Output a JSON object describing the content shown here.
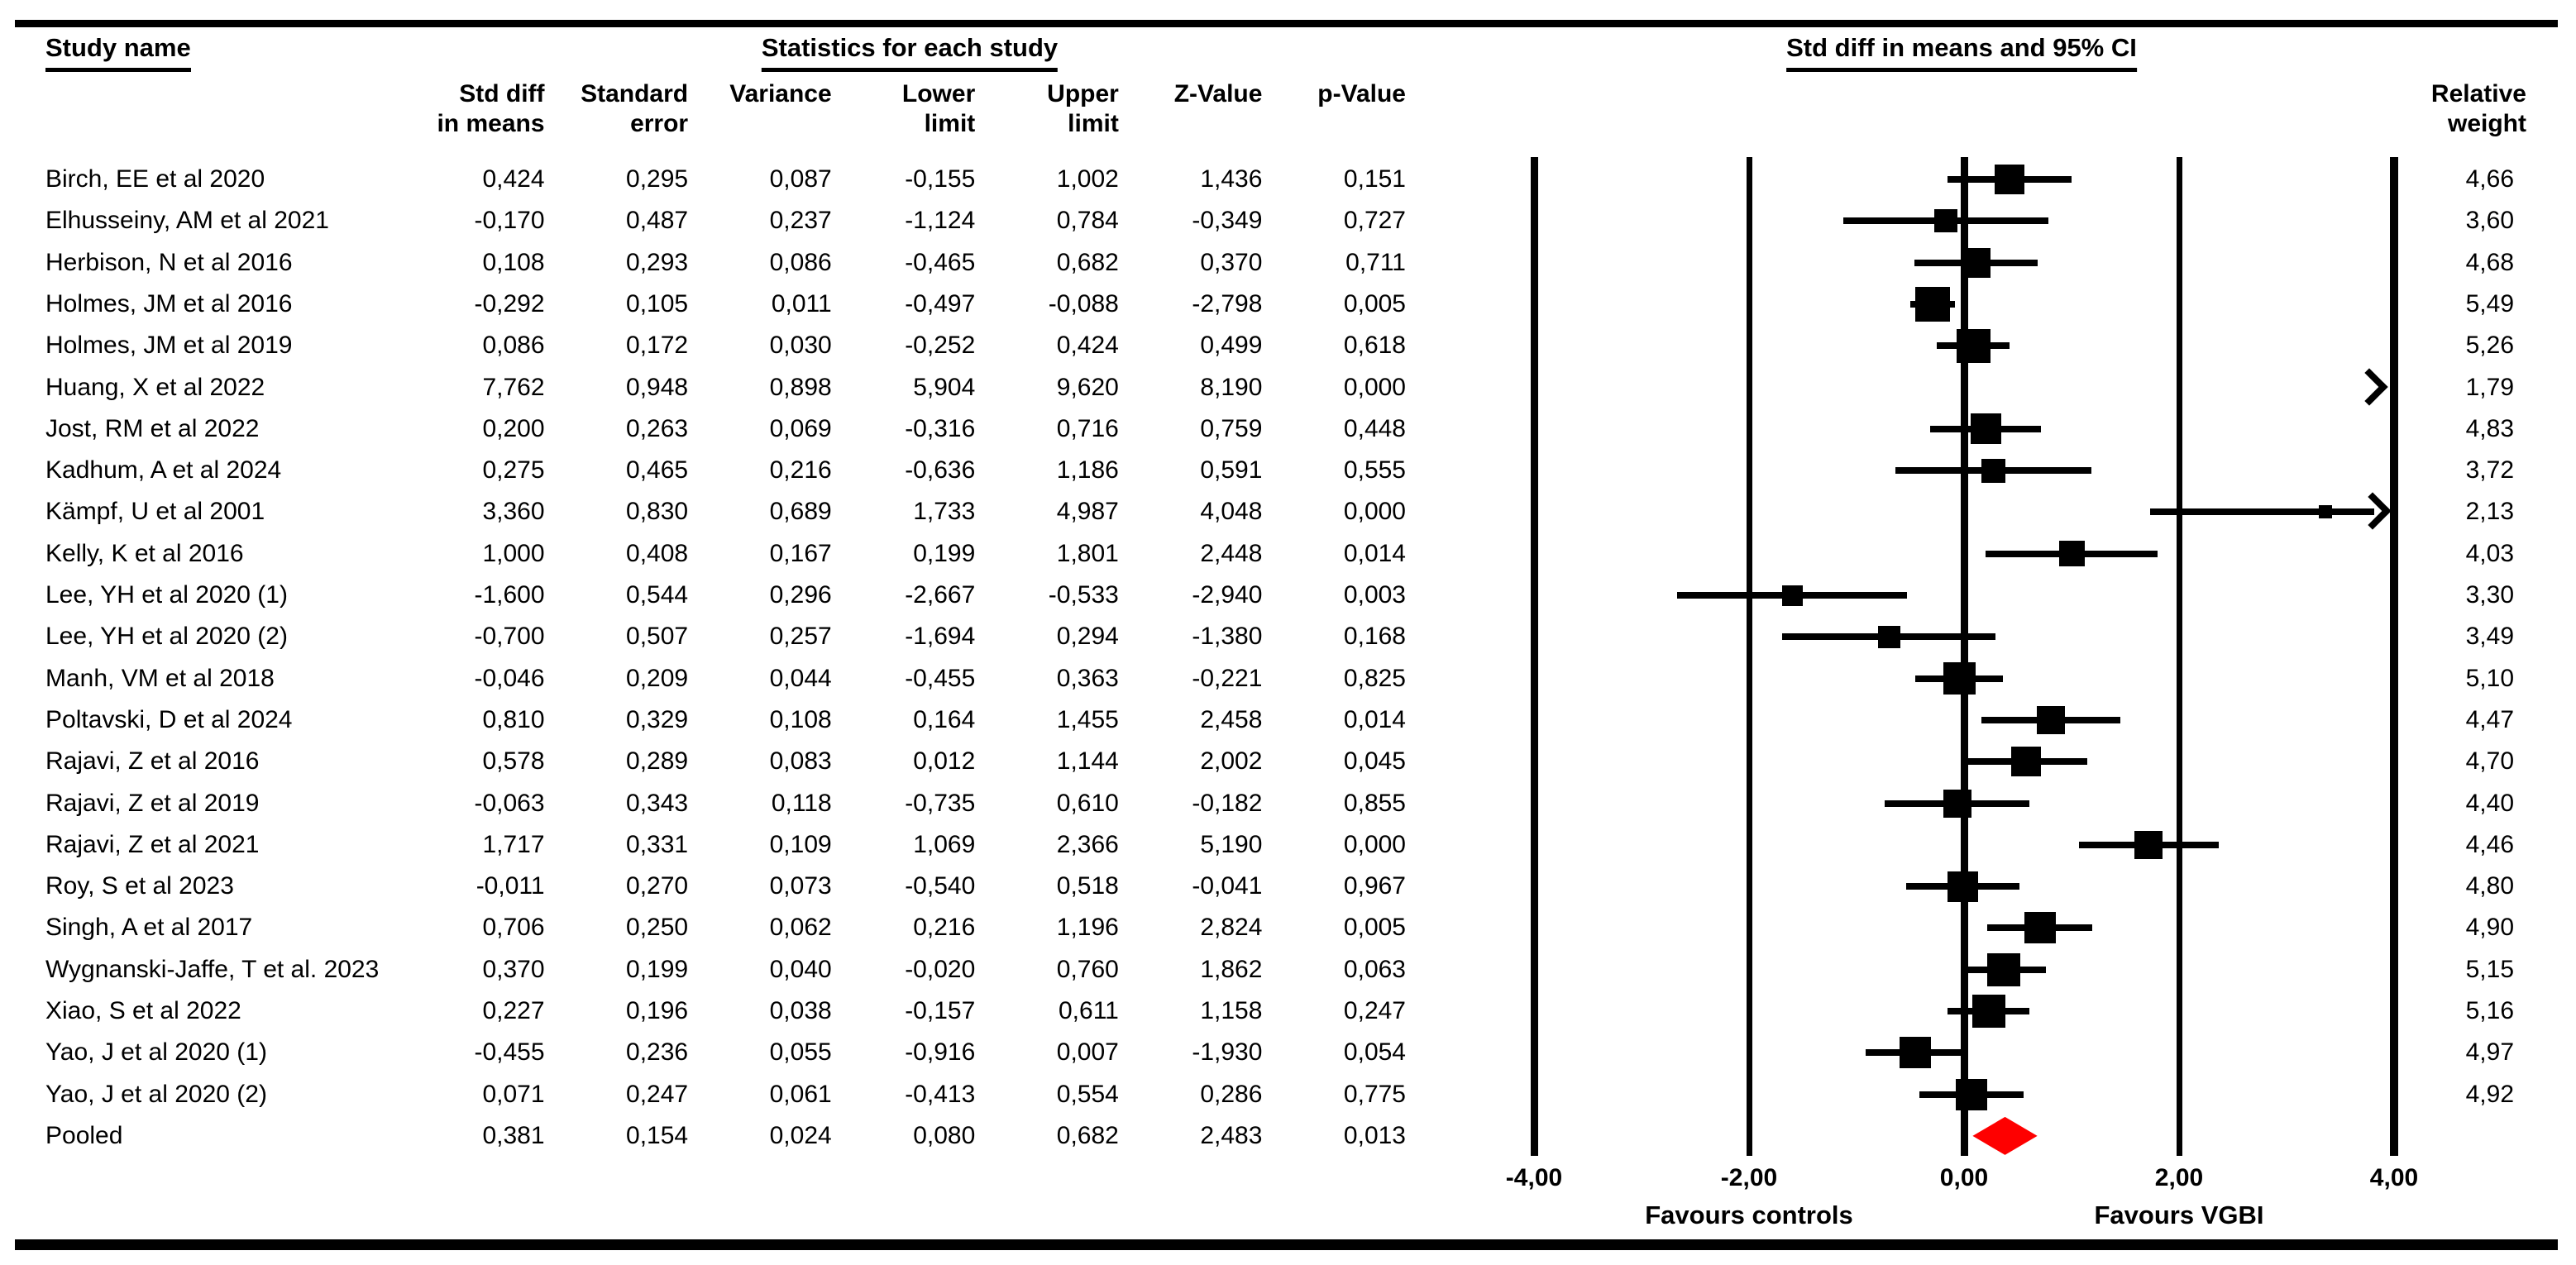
{
  "colors": {
    "diamond": "#fe0000",
    "ink": "#000000"
  },
  "headers": {
    "study_name": "Study name",
    "statistics": "Statistics for each study",
    "plot": "Std diff in means and 95% CI",
    "relative_weight": "Relative\nweight",
    "columns": [
      "Std diff\nin means",
      "Standard\nerror",
      "Variance",
      "Lower\nlimit",
      "Upper\nlimit",
      "Z-Value",
      "p-Value"
    ]
  },
  "chart_data": {
    "type": "forest",
    "title": "Std diff in means and 95% CI",
    "x_axis": {
      "range": [
        -4,
        4
      ],
      "ticks": [
        -4,
        -2,
        0,
        2,
        4
      ],
      "tick_labels": [
        "-4,00",
        "-2,00",
        "0,00",
        "2,00",
        "4,00"
      ],
      "left_label": "Favours controls",
      "right_label": "Favours VGBI",
      "grid": "vertical-lines-at-ticks"
    },
    "studies": [
      {
        "name": "Birch, EE et al 2020",
        "cells": [
          "0,424",
          "0,295",
          "0,087",
          "-0,155",
          "1,002",
          "1,436",
          "0,151"
        ],
        "point": 0.424,
        "lower": -0.155,
        "upper": 1.002,
        "weight": 4.66,
        "weight_label": "4,66"
      },
      {
        "name": "Elhusseiny, AM et al 2021",
        "cells": [
          "-0,170",
          "0,487",
          "0,237",
          "-1,124",
          "0,784",
          "-0,349",
          "0,727"
        ],
        "point": -0.17,
        "lower": -1.124,
        "upper": 0.784,
        "weight": 3.6,
        "weight_label": "3,60"
      },
      {
        "name": "Herbison, N et al 2016",
        "cells": [
          "0,108",
          "0,293",
          "0,086",
          "-0,465",
          "0,682",
          "0,370",
          "0,711"
        ],
        "point": 0.108,
        "lower": -0.465,
        "upper": 0.682,
        "weight": 4.68,
        "weight_label": "4,68"
      },
      {
        "name": "Holmes, JM et al 2016",
        "cells": [
          "-0,292",
          "0,105",
          "0,011",
          "-0,497",
          "-0,088",
          "-2,798",
          "0,005"
        ],
        "point": -0.292,
        "lower": -0.497,
        "upper": -0.088,
        "weight": 5.49,
        "weight_label": "5,49"
      },
      {
        "name": "Holmes, JM et al 2019",
        "cells": [
          "0,086",
          "0,172",
          "0,030",
          "-0,252",
          "0,424",
          "0,499",
          "0,618"
        ],
        "point": 0.086,
        "lower": -0.252,
        "upper": 0.424,
        "weight": 5.26,
        "weight_label": "5,26"
      },
      {
        "name": "Huang, X et al 2022",
        "cells": [
          "7,762",
          "0,948",
          "0,898",
          "5,904",
          "9,620",
          "8,190",
          "0,000"
        ],
        "point": 7.762,
        "lower": 5.904,
        "upper": 9.62,
        "weight": 1.79,
        "weight_label": "1,79"
      },
      {
        "name": "Jost, RM et al 2022",
        "cells": [
          "0,200",
          "0,263",
          "0,069",
          "-0,316",
          "0,716",
          "0,759",
          "0,448"
        ],
        "point": 0.2,
        "lower": -0.316,
        "upper": 0.716,
        "weight": 4.83,
        "weight_label": "4,83"
      },
      {
        "name": "Kadhum, A et al 2024",
        "cells": [
          "0,275",
          "0,465",
          "0,216",
          "-0,636",
          "1,186",
          "0,591",
          "0,555"
        ],
        "point": 0.275,
        "lower": -0.636,
        "upper": 1.186,
        "weight": 3.72,
        "weight_label": "3,72"
      },
      {
        "name": "Kämpf, U et al 2001",
        "cells": [
          "3,360",
          "0,830",
          "0,689",
          "1,733",
          "4,987",
          "4,048",
          "0,000"
        ],
        "point": 3.36,
        "lower": 1.733,
        "upper": 4.987,
        "weight": 2.13,
        "weight_label": "2,13"
      },
      {
        "name": "Kelly, K et al 2016",
        "cells": [
          "1,000",
          "0,408",
          "0,167",
          "0,199",
          "1,801",
          "2,448",
          "0,014"
        ],
        "point": 1.0,
        "lower": 0.199,
        "upper": 1.801,
        "weight": 4.03,
        "weight_label": "4,03"
      },
      {
        "name": "Lee, YH et al 2020 (1)",
        "cells": [
          "-1,600",
          "0,544",
          "0,296",
          "-2,667",
          "-0,533",
          "-2,940",
          "0,003"
        ],
        "point": -1.6,
        "lower": -2.667,
        "upper": -0.533,
        "weight": 3.3,
        "weight_label": "3,30"
      },
      {
        "name": "Lee, YH et al 2020 (2)",
        "cells": [
          "-0,700",
          "0,507",
          "0,257",
          "-1,694",
          "0,294",
          "-1,380",
          "0,168"
        ],
        "point": -0.7,
        "lower": -1.694,
        "upper": 0.294,
        "weight": 3.49,
        "weight_label": "3,49"
      },
      {
        "name": "Manh, VM et al 2018",
        "cells": [
          "-0,046",
          "0,209",
          "0,044",
          "-0,455",
          "0,363",
          "-0,221",
          "0,825"
        ],
        "point": -0.046,
        "lower": -0.455,
        "upper": 0.363,
        "weight": 5.1,
        "weight_label": "5,10"
      },
      {
        "name": "Poltavski, D et al 2024",
        "cells": [
          "0,810",
          "0,329",
          "0,108",
          "0,164",
          "1,455",
          "2,458",
          "0,014"
        ],
        "point": 0.81,
        "lower": 0.164,
        "upper": 1.455,
        "weight": 4.47,
        "weight_label": "4,47"
      },
      {
        "name": "Rajavi, Z et al 2016",
        "cells": [
          "0,578",
          "0,289",
          "0,083",
          "0,012",
          "1,144",
          "2,002",
          "0,045"
        ],
        "point": 0.578,
        "lower": 0.012,
        "upper": 1.144,
        "weight": 4.7,
        "weight_label": "4,70"
      },
      {
        "name": "Rajavi, Z et al 2019",
        "cells": [
          "-0,063",
          "0,343",
          "0,118",
          "-0,735",
          "0,610",
          "-0,182",
          "0,855"
        ],
        "point": -0.063,
        "lower": -0.735,
        "upper": 0.61,
        "weight": 4.4,
        "weight_label": "4,40"
      },
      {
        "name": "Rajavi, Z et al 2021",
        "cells": [
          "1,717",
          "0,331",
          "0,109",
          "1,069",
          "2,366",
          "5,190",
          "0,000"
        ],
        "point": 1.717,
        "lower": 1.069,
        "upper": 2.366,
        "weight": 4.46,
        "weight_label": "4,46"
      },
      {
        "name": "Roy, S et al 2023",
        "cells": [
          "-0,011",
          "0,270",
          "0,073",
          "-0,540",
          "0,518",
          "-0,041",
          "0,967"
        ],
        "point": -0.011,
        "lower": -0.54,
        "upper": 0.518,
        "weight": 4.8,
        "weight_label": "4,80"
      },
      {
        "name": "Singh, A et al 2017",
        "cells": [
          "0,706",
          "0,250",
          "0,062",
          "0,216",
          "1,196",
          "2,824",
          "0,005"
        ],
        "point": 0.706,
        "lower": 0.216,
        "upper": 1.196,
        "weight": 4.9,
        "weight_label": "4,90"
      },
      {
        "name": "Wygnanski-Jaffe, T et al. 2023",
        "cells": [
          "0,370",
          "0,199",
          "0,040",
          "-0,020",
          "0,760",
          "1,862",
          "0,063"
        ],
        "point": 0.37,
        "lower": -0.02,
        "upper": 0.76,
        "weight": 5.15,
        "weight_label": "5,15"
      },
      {
        "name": "Xiao, S et al 2022",
        "cells": [
          "0,227",
          "0,196",
          "0,038",
          "-0,157",
          "0,611",
          "1,158",
          "0,247"
        ],
        "point": 0.227,
        "lower": -0.157,
        "upper": 0.611,
        "weight": 5.16,
        "weight_label": "5,16"
      },
      {
        "name": "Yao, J et al 2020 (1)",
        "cells": [
          "-0,455",
          "0,236",
          "0,055",
          "-0,916",
          "0,007",
          "-1,930",
          "0,054"
        ],
        "point": -0.455,
        "lower": -0.916,
        "upper": 0.007,
        "weight": 4.97,
        "weight_label": "4,97"
      },
      {
        "name": "Yao, J et al 2020 (2)",
        "cells": [
          "0,071",
          "0,247",
          "0,061",
          "-0,413",
          "0,554",
          "0,286",
          "0,775"
        ],
        "point": 0.071,
        "lower": -0.413,
        "upper": 0.554,
        "weight": 4.92,
        "weight_label": "4,92"
      }
    ],
    "pooled": {
      "name": "Pooled",
      "cells": [
        "0,381",
        "0,154",
        "0,024",
        "0,080",
        "0,682",
        "2,483",
        "0,013"
      ],
      "point": 0.381,
      "lower": 0.08,
      "upper": 0.682,
      "weight_label": ""
    }
  }
}
